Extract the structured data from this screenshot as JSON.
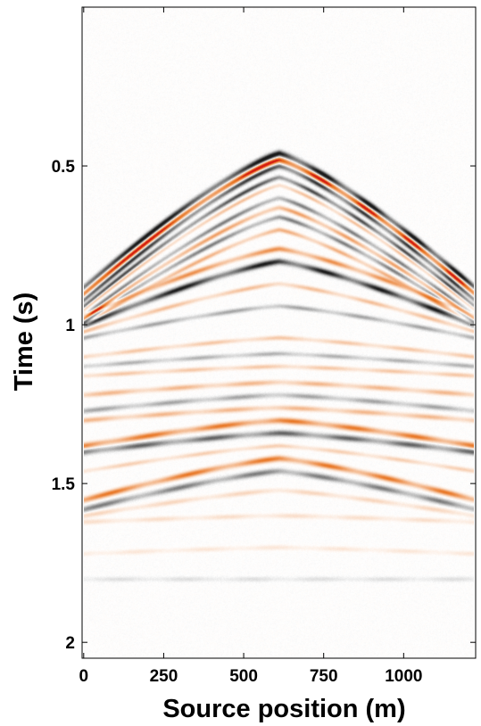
{
  "chart_data": {
    "type": "heatmap",
    "title": "",
    "xlabel": "Source position (m)",
    "ylabel": "Time (s)",
    "xlim": [
      -5,
      1225
    ],
    "ylim": [
      0.0,
      2.05
    ],
    "y_inverted": true,
    "grid": false,
    "x_ticks": [
      0,
      250,
      500,
      750,
      1000
    ],
    "y_ticks": [
      0.5,
      1,
      1.5,
      2
    ],
    "x_tick_labels": [
      "0",
      "250",
      "500",
      "750",
      "1000"
    ],
    "y_tick_labels": [
      "0.5",
      "1",
      "1.5",
      "2"
    ],
    "colormap": {
      "positive": "#e8731f",
      "negative": "#1a1a1a",
      "peak": "#d51a12",
      "zero": "#ffffff"
    },
    "apex_position_m": 610,
    "events": [
      {
        "t_apex": 0.46,
        "t_edge": 0.88,
        "amplitude": -1.0,
        "width": 0.01
      },
      {
        "t_apex": 0.48,
        "t_edge": 0.9,
        "amplitude": 1.3,
        "width": 0.009
      },
      {
        "t_apex": 0.5,
        "t_edge": 0.92,
        "amplitude": -0.8,
        "width": 0.008
      },
      {
        "t_apex": 0.535,
        "t_edge": 0.94,
        "amplitude": -0.7,
        "width": 0.007
      },
      {
        "t_apex": 0.56,
        "t_edge": 0.95,
        "amplitude": 0.4,
        "width": 0.006
      },
      {
        "t_apex": 0.6,
        "t_edge": 0.97,
        "amplitude": -0.5,
        "width": 0.007
      },
      {
        "t_apex": 0.63,
        "t_edge": 0.98,
        "amplitude": 0.6,
        "width": 0.007
      },
      {
        "t_apex": 0.66,
        "t_edge": 0.99,
        "amplitude": -0.5,
        "width": 0.007
      },
      {
        "t_apex": 0.7,
        "t_edge": 1.0,
        "amplitude": 0.5,
        "width": 0.007
      },
      {
        "t_apex": 0.76,
        "t_edge": 0.97,
        "amplitude": 0.7,
        "width": 0.008
      },
      {
        "t_apex": 0.8,
        "t_edge": 1.0,
        "amplitude": -0.9,
        "width": 0.009
      },
      {
        "t_apex": 0.87,
        "t_edge": 1.02,
        "amplitude": 0.4,
        "width": 0.007
      },
      {
        "t_apex": 0.94,
        "t_edge": 1.04,
        "amplitude": -0.35,
        "width": 0.007
      },
      {
        "t_apex": 1.04,
        "t_edge": 1.1,
        "amplitude": 0.35,
        "width": 0.007
      },
      {
        "t_apex": 1.09,
        "t_edge": 1.13,
        "amplitude": -0.3,
        "width": 0.007
      },
      {
        "t_apex": 1.13,
        "t_edge": 1.16,
        "amplitude": 0.35,
        "width": 0.007
      },
      {
        "t_apex": 1.18,
        "t_edge": 1.22,
        "amplitude": 0.45,
        "width": 0.008
      },
      {
        "t_apex": 1.22,
        "t_edge": 1.27,
        "amplitude": -0.35,
        "width": 0.008
      },
      {
        "t_apex": 1.26,
        "t_edge": 1.3,
        "amplitude": 0.45,
        "width": 0.008
      },
      {
        "t_apex": 1.3,
        "t_edge": 1.38,
        "amplitude": 0.85,
        "width": 0.009
      },
      {
        "t_apex": 1.34,
        "t_edge": 1.4,
        "amplitude": -0.6,
        "width": 0.009
      },
      {
        "t_apex": 1.38,
        "t_edge": 1.46,
        "amplitude": 0.3,
        "width": 0.007
      },
      {
        "t_apex": 1.42,
        "t_edge": 1.55,
        "amplitude": 0.85,
        "width": 0.009
      },
      {
        "t_apex": 1.46,
        "t_edge": 1.58,
        "amplitude": -0.5,
        "width": 0.009
      },
      {
        "t_apex": 1.52,
        "t_edge": 1.6,
        "amplitude": 0.25,
        "width": 0.008
      },
      {
        "t_apex": 1.6,
        "t_edge": 1.62,
        "amplitude": 0.2,
        "width": 0.008
      },
      {
        "t_apex": 1.7,
        "t_edge": 1.72,
        "amplitude": 0.15,
        "width": 0.008
      },
      {
        "t_apex": 1.8,
        "t_edge": 1.8,
        "amplitude": -0.12,
        "width": 0.008
      }
    ]
  }
}
